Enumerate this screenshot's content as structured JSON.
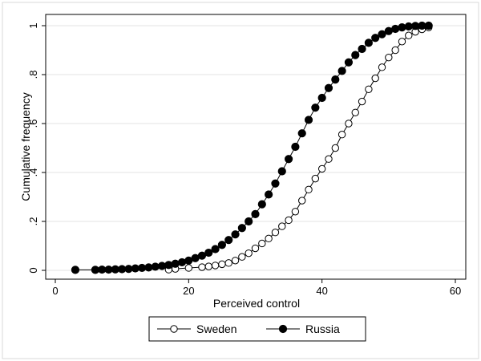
{
  "chart_data": {
    "type": "line",
    "title": "",
    "xlabel": "Perceived control",
    "ylabel": "Cumulative frequency",
    "xlim": [
      0,
      60
    ],
    "ylim": [
      0,
      1
    ],
    "x_ticks": [
      {
        "value": 0,
        "label": "0"
      },
      {
        "value": 20,
        "label": "20"
      },
      {
        "value": 40,
        "label": "40"
      },
      {
        "value": 60,
        "label": "60"
      }
    ],
    "y_ticks": [
      {
        "value": 0,
        "label": "0"
      },
      {
        "value": 0.2,
        "label": ".2"
      },
      {
        "value": 0.4,
        "label": ".4"
      },
      {
        "value": 0.6,
        "label": ".6"
      },
      {
        "value": 0.8,
        "label": ".8"
      },
      {
        "value": 1,
        "label": "1"
      }
    ],
    "grid": "horizontal",
    "legend_position": "bottom",
    "series": [
      {
        "name": "Sweden",
        "marker": "open-circle",
        "color": "#000000",
        "points": [
          [
            17,
            0.003
          ],
          [
            18,
            0.006
          ],
          [
            20,
            0.01
          ],
          [
            22,
            0.013
          ],
          [
            23,
            0.016
          ],
          [
            24,
            0.02
          ],
          [
            25,
            0.025
          ],
          [
            26,
            0.03
          ],
          [
            27,
            0.04
          ],
          [
            28,
            0.055
          ],
          [
            29,
            0.07
          ],
          [
            30,
            0.09
          ],
          [
            31,
            0.11
          ],
          [
            32,
            0.13
          ],
          [
            33,
            0.155
          ],
          [
            34,
            0.18
          ],
          [
            35,
            0.205
          ],
          [
            36,
            0.24
          ],
          [
            37,
            0.285
          ],
          [
            38,
            0.33
          ],
          [
            39,
            0.375
          ],
          [
            40,
            0.415
          ],
          [
            41,
            0.455
          ],
          [
            42,
            0.5
          ],
          [
            43,
            0.555
          ],
          [
            44,
            0.6
          ],
          [
            45,
            0.645
          ],
          [
            46,
            0.69
          ],
          [
            47,
            0.74
          ],
          [
            48,
            0.785
          ],
          [
            49,
            0.83
          ],
          [
            50,
            0.87
          ],
          [
            51,
            0.9
          ],
          [
            52,
            0.935
          ],
          [
            53,
            0.96
          ],
          [
            54,
            0.975
          ],
          [
            55,
            0.985
          ],
          [
            56,
            0.993
          ]
        ]
      },
      {
        "name": "Russia",
        "marker": "filled-circle",
        "color": "#000000",
        "points": [
          [
            3,
            0.002
          ],
          [
            6,
            0.002
          ],
          [
            7,
            0.003
          ],
          [
            8,
            0.003
          ],
          [
            9,
            0.004
          ],
          [
            10,
            0.005
          ],
          [
            11,
            0.006
          ],
          [
            12,
            0.008
          ],
          [
            13,
            0.01
          ],
          [
            14,
            0.012
          ],
          [
            15,
            0.015
          ],
          [
            16,
            0.018
          ],
          [
            17,
            0.022
          ],
          [
            18,
            0.027
          ],
          [
            19,
            0.033
          ],
          [
            20,
            0.04
          ],
          [
            21,
            0.05
          ],
          [
            22,
            0.06
          ],
          [
            23,
            0.072
          ],
          [
            24,
            0.087
          ],
          [
            25,
            0.104
          ],
          [
            26,
            0.124
          ],
          [
            27,
            0.147
          ],
          [
            28,
            0.173
          ],
          [
            29,
            0.2
          ],
          [
            30,
            0.23
          ],
          [
            31,
            0.27
          ],
          [
            32,
            0.31
          ],
          [
            33,
            0.355
          ],
          [
            34,
            0.405
          ],
          [
            35,
            0.455
          ],
          [
            36,
            0.505
          ],
          [
            37,
            0.56
          ],
          [
            38,
            0.615
          ],
          [
            39,
            0.665
          ],
          [
            40,
            0.705
          ],
          [
            41,
            0.745
          ],
          [
            42,
            0.78
          ],
          [
            43,
            0.815
          ],
          [
            44,
            0.85
          ],
          [
            45,
            0.88
          ],
          [
            46,
            0.905
          ],
          [
            47,
            0.93
          ],
          [
            48,
            0.95
          ],
          [
            49,
            0.965
          ],
          [
            50,
            0.978
          ],
          [
            51,
            0.987
          ],
          [
            52,
            0.993
          ],
          [
            53,
            0.997
          ],
          [
            54,
            0.999
          ],
          [
            55,
            1.0
          ],
          [
            56,
            1.0
          ]
        ]
      }
    ]
  }
}
